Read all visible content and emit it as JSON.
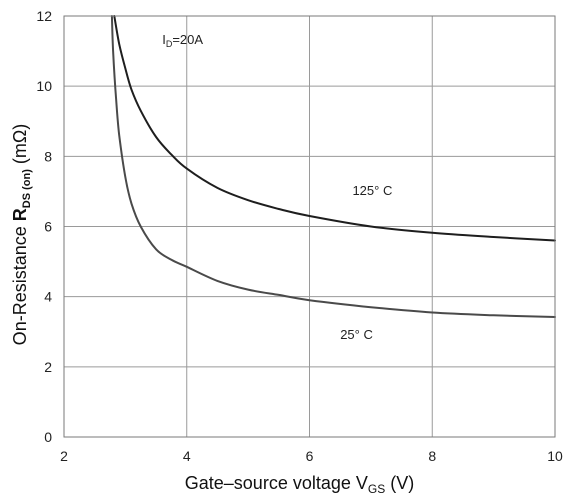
{
  "chart_data": {
    "type": "line",
    "xlabel_main": "Gate–source voltage V",
    "xlabel_sub": "GS",
    "xlabel_unit": " (V)",
    "ylabel_main": "On-Resistance ",
    "ylabel_bold": "R",
    "ylabel_sub": "DS (on)",
    "ylabel_unit": " (mΩ)",
    "xlim": [
      2,
      10
    ],
    "ylim": [
      0,
      12
    ],
    "x_ticks": [
      "2",
      "4",
      "6",
      "8",
      "10"
    ],
    "y_ticks": [
      "0",
      "2",
      "4",
      "6",
      "8",
      "10",
      "12"
    ],
    "grid": true,
    "condition_main": "I",
    "condition_sub": "D",
    "condition_value": "=20A",
    "series": [
      {
        "label": "125° C",
        "color": "#1e1e1e",
        "x": [
          2.82,
          2.9,
          3.0,
          3.1,
          3.25,
          3.5,
          3.75,
          4.0,
          4.5,
          5.0,
          5.5,
          6.0,
          7.0,
          8.0,
          9.0,
          10.0
        ],
        "y": [
          12.0,
          11.2,
          10.5,
          9.9,
          9.3,
          8.55,
          8.05,
          7.65,
          7.1,
          6.75,
          6.5,
          6.3,
          6.0,
          5.82,
          5.7,
          5.6
        ]
      },
      {
        "label": "25° C",
        "color": "#4a4a4a",
        "x": [
          2.78,
          2.8,
          2.85,
          2.9,
          3.0,
          3.1,
          3.25,
          3.5,
          3.75,
          4.0,
          4.5,
          5.0,
          5.5,
          6.0,
          7.0,
          8.0,
          9.0,
          10.0
        ],
        "y": [
          12.0,
          11.0,
          9.6,
          8.6,
          7.4,
          6.65,
          6.0,
          5.35,
          5.05,
          4.85,
          4.45,
          4.2,
          4.05,
          3.9,
          3.7,
          3.55,
          3.47,
          3.42
        ]
      }
    ]
  }
}
